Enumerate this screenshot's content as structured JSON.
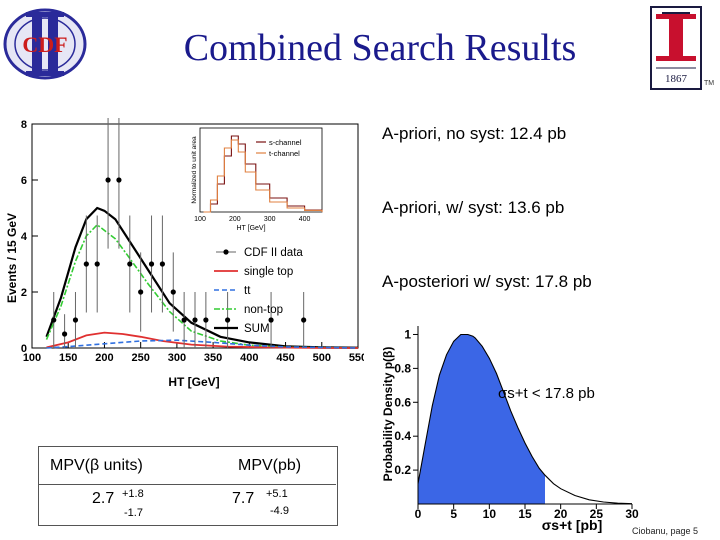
{
  "slide": {
    "title": "Combined Search Results",
    "logo_left_text": "CDF",
    "logo_right_year": "1867",
    "logo_right_tm": "TM",
    "footer": "Ciobanu, page 5"
  },
  "results": {
    "line1": "A-priori, no syst: 12.4 pb",
    "line2": "A-priori, w/ syst: 13.6 pb",
    "line3": "A-posteriori w/ syst: 17.8 pb"
  },
  "table": {
    "headers": [
      "MPV(β units)",
      "MPV(pb)"
    ],
    "rows": [
      {
        "central": "2.7",
        "plus": "+1.8",
        "minus": "-1.7"
      },
      {
        "central": "7.7",
        "plus": "+5.1",
        "minus": "-4.9"
      }
    ]
  },
  "colors": {
    "title": "#1a1a8c",
    "fill": "#3b66e6",
    "sum": "#000000",
    "single_top": "#e03030",
    "ttbar": "#3070e0",
    "nontop": "#33cc33"
  },
  "chart_data": [
    {
      "type": "line",
      "xlabel": "HT [GeV]",
      "ylabel": "Events / 15 GeV",
      "xlim": [
        100,
        550
      ],
      "ylim": [
        0,
        8
      ],
      "xticks": [
        "100",
        "150",
        "200",
        "250",
        "300",
        "350",
        "400",
        "450",
        "500",
        "550"
      ],
      "yticks": [
        "0",
        "2",
        "4",
        "6",
        "8"
      ],
      "legend": [
        "CDF II data",
        "single top",
        "tt",
        "non-top",
        "SUM"
      ],
      "legend_position": "right",
      "series": [
        {
          "name": "CDF II data",
          "x": [
            130,
            145,
            160,
            175,
            190,
            205,
            220,
            235,
            250,
            265,
            280,
            295,
            310,
            325,
            340,
            370,
            430,
            475
          ],
          "y": [
            1,
            0.5,
            1,
            3,
            3,
            6,
            6,
            3,
            2,
            3,
            3,
            2,
            1,
            1,
            1,
            1,
            1,
            1
          ]
        },
        {
          "name": "SUM",
          "x": [
            120,
            140,
            160,
            175,
            190,
            200,
            215,
            235,
            260,
            290,
            320,
            360,
            400,
            450,
            500,
            550
          ],
          "y": [
            0.4,
            1.8,
            3.6,
            4.6,
            5.0,
            4.9,
            4.6,
            3.8,
            2.8,
            1.6,
            0.9,
            0.4,
            0.2,
            0.06,
            0.02,
            0.01
          ]
        },
        {
          "name": "non-top",
          "x": [
            120,
            140,
            160,
            175,
            190,
            200,
            215,
            235,
            260,
            290,
            320,
            360,
            400,
            450,
            500,
            550
          ],
          "y": [
            0.3,
            1.5,
            3.1,
            4.0,
            4.4,
            4.2,
            3.9,
            3.2,
            2.3,
            1.3,
            0.6,
            0.25,
            0.1,
            0.03,
            0.01,
            0.0
          ]
        },
        {
          "name": "single top",
          "x": [
            120,
            150,
            175,
            200,
            225,
            250,
            280,
            320,
            370,
            420,
            500,
            550
          ],
          "y": [
            0.02,
            0.2,
            0.45,
            0.55,
            0.5,
            0.4,
            0.25,
            0.12,
            0.05,
            0.02,
            0.0,
            0.0
          ]
        },
        {
          "name": "tt",
          "x": [
            120,
            150,
            200,
            250,
            300,
            350,
            400,
            450,
            550
          ],
          "y": [
            0.0,
            0.05,
            0.15,
            0.25,
            0.28,
            0.2,
            0.1,
            0.04,
            0.0
          ]
        }
      ],
      "inset": {
        "type": "line",
        "xlabel": "HT [GeV]",
        "ylabel": "Normalized to unit area",
        "xticks": [
          "100",
          "200",
          "300",
          "400"
        ],
        "xlim": [
          100,
          450
        ],
        "legend": [
          "s-channel",
          "t-channel"
        ],
        "series": [
          {
            "name": "s-channel",
            "x": [
              110,
              130,
              150,
              170,
              190,
              210,
              230,
              260,
              300,
              350,
              400,
              450
            ],
            "y": [
              0.0,
              0.02,
              0.07,
              0.14,
              0.19,
              0.17,
              0.12,
              0.07,
              0.035,
              0.015,
              0.005,
              0.0
            ]
          },
          {
            "name": "t-channel",
            "x": [
              110,
              130,
              150,
              170,
              190,
              210,
              230,
              260,
              300,
              350,
              400,
              450
            ],
            "y": [
              0.0,
              0.03,
              0.09,
              0.16,
              0.18,
              0.15,
              0.1,
              0.055,
              0.025,
              0.01,
              0.004,
              0.0
            ]
          }
        ]
      }
    },
    {
      "type": "area",
      "xlabel": "σs+t [pb]",
      "ylabel": "Probability Density p(β)",
      "xlim": [
        0,
        30
      ],
      "ylim": [
        0,
        1.05
      ],
      "xticks": [
        "0",
        "5",
        "10",
        "15",
        "20",
        "25",
        "30"
      ],
      "yticks": [
        "0.2",
        "0.4",
        "0.6",
        "0.8",
        "1"
      ],
      "annotation": "σs+t < 17.8 pb",
      "limit": 17.8,
      "series": [
        {
          "name": "p",
          "x": [
            0,
            1,
            2,
            3,
            4,
            5,
            6,
            7,
            7.7,
            8,
            9,
            10,
            11,
            12,
            13,
            14,
            15,
            16,
            17,
            17.8,
            19,
            20,
            22,
            24,
            26,
            28,
            30
          ],
          "y": [
            0.12,
            0.35,
            0.58,
            0.76,
            0.88,
            0.96,
            1.0,
            1.0,
            0.99,
            0.98,
            0.93,
            0.86,
            0.77,
            0.66,
            0.55,
            0.45,
            0.36,
            0.28,
            0.21,
            0.17,
            0.12,
            0.09,
            0.05,
            0.025,
            0.012,
            0.005,
            0.002
          ]
        }
      ]
    }
  ]
}
